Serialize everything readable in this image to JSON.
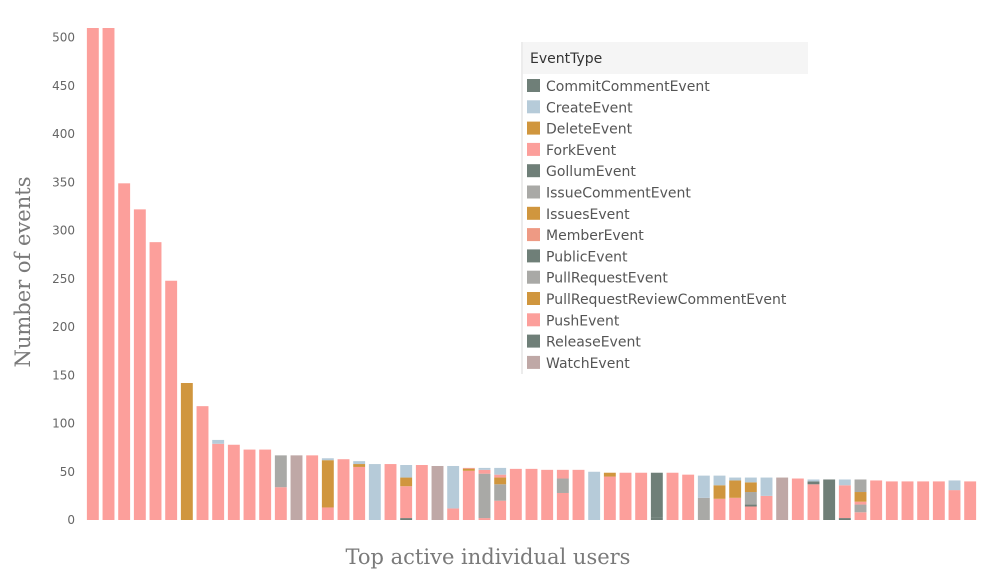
{
  "chart_data": {
    "type": "bar",
    "stacked": true,
    "xlabel": "Top active individual users",
    "ylabel": "Number of events",
    "ylim": [
      0,
      510
    ],
    "yticks": [
      0,
      50,
      100,
      150,
      200,
      250,
      300,
      350,
      400,
      450,
      500
    ],
    "grid": false,
    "legend": {
      "title": "EventType",
      "position": "top-right",
      "entries": [
        {
          "name": "CommitCommentEvent",
          "color": "#6f7f78"
        },
        {
          "name": "CreateEvent",
          "color": "#b6cbd9"
        },
        {
          "name": "DeleteEvent",
          "color": "#d0963e"
        },
        {
          "name": "ForkEvent",
          "color": "#fc9f9b"
        },
        {
          "name": "GollumEvent",
          "color": "#6f7f78"
        },
        {
          "name": "IssueCommentEvent",
          "color": "#a9a9a6"
        },
        {
          "name": "IssuesEvent",
          "color": "#d0963e"
        },
        {
          "name": "MemberEvent",
          "color": "#ee9a84"
        },
        {
          "name": "PublicEvent",
          "color": "#6f7f78"
        },
        {
          "name": "PullRequestEvent",
          "color": "#a9a9a6"
        },
        {
          "name": "PullRequestReviewCommentEvent",
          "color": "#d0963e"
        },
        {
          "name": "PushEvent",
          "color": "#fc9f9b"
        },
        {
          "name": "ReleaseEvent",
          "color": "#6f7f78"
        },
        {
          "name": "WatchEvent",
          "color": "#bfa8a6"
        }
      ]
    },
    "bars": [
      [
        {
          "t": "PushEvent",
          "v": 510
        }
      ],
      [
        {
          "t": "PushEvent",
          "v": 510
        }
      ],
      [
        {
          "t": "PushEvent",
          "v": 349
        }
      ],
      [
        {
          "t": "PushEvent",
          "v": 322
        }
      ],
      [
        {
          "t": "PushEvent",
          "v": 288
        }
      ],
      [
        {
          "t": "PushEvent",
          "v": 248
        }
      ],
      [
        {
          "t": "IssuesEvent",
          "v": 142
        }
      ],
      [
        {
          "t": "PushEvent",
          "v": 118
        }
      ],
      [
        {
          "t": "PushEvent",
          "v": 79
        },
        {
          "t": "CreateEvent",
          "v": 4
        }
      ],
      [
        {
          "t": "PushEvent",
          "v": 78
        }
      ],
      [
        {
          "t": "PushEvent",
          "v": 73
        }
      ],
      [
        {
          "t": "PushEvent",
          "v": 73
        }
      ],
      [
        {
          "t": "PushEvent",
          "v": 34
        },
        {
          "t": "IssueCommentEvent",
          "v": 33
        }
      ],
      [
        {
          "t": "WatchEvent",
          "v": 67
        }
      ],
      [
        {
          "t": "PushEvent",
          "v": 67
        }
      ],
      [
        {
          "t": "PushEvent",
          "v": 13
        },
        {
          "t": "IssuesEvent",
          "v": 49
        },
        {
          "t": "CreateEvent",
          "v": 2
        }
      ],
      [
        {
          "t": "PushEvent",
          "v": 63
        }
      ],
      [
        {
          "t": "PushEvent",
          "v": 55
        },
        {
          "t": "IssuesEvent",
          "v": 3
        },
        {
          "t": "CreateEvent",
          "v": 3
        }
      ],
      [
        {
          "t": "CreateEvent",
          "v": 58
        }
      ],
      [
        {
          "t": "PushEvent",
          "v": 58
        }
      ],
      [
        {
          "t": "CommitCommentEvent",
          "v": 2
        },
        {
          "t": "PushEvent",
          "v": 33
        },
        {
          "t": "IssuesEvent",
          "v": 9
        },
        {
          "t": "CreateEvent",
          "v": 13
        }
      ],
      [
        {
          "t": "PushEvent",
          "v": 57
        }
      ],
      [
        {
          "t": "WatchEvent",
          "v": 56
        }
      ],
      [
        {
          "t": "PushEvent",
          "v": 12
        },
        {
          "t": "CreateEvent",
          "v": 44
        }
      ],
      [
        {
          "t": "PushEvent",
          "v": 51
        },
        {
          "t": "IssuesEvent",
          "v": 2
        },
        {
          "t": "MemberEvent",
          "v": 1
        }
      ],
      [
        {
          "t": "PushEvent",
          "v": 2
        },
        {
          "t": "IssueCommentEvent",
          "v": 46
        },
        {
          "t": "PushEvent",
          "v": 4
        },
        {
          "t": "CreateEvent",
          "v": 2
        }
      ],
      [
        {
          "t": "PushEvent",
          "v": 20
        },
        {
          "t": "IssueCommentEvent",
          "v": 17
        },
        {
          "t": "IssuesEvent",
          "v": 7
        },
        {
          "t": "PushEvent",
          "v": 3
        },
        {
          "t": "CreateEvent",
          "v": 7
        }
      ],
      [
        {
          "t": "PushEvent",
          "v": 53
        }
      ],
      [
        {
          "t": "PushEvent",
          "v": 53
        }
      ],
      [
        {
          "t": "PushEvent",
          "v": 52
        }
      ],
      [
        {
          "t": "PushEvent",
          "v": 28
        },
        {
          "t": "IssueCommentEvent",
          "v": 15
        },
        {
          "t": "PushEvent",
          "v": 9
        }
      ],
      [
        {
          "t": "PushEvent",
          "v": 52
        }
      ],
      [
        {
          "t": "CreateEvent",
          "v": 50
        }
      ],
      [
        {
          "t": "PushEvent",
          "v": 45
        },
        {
          "t": "IssuesEvent",
          "v": 4
        }
      ],
      [
        {
          "t": "PushEvent",
          "v": 49
        }
      ],
      [
        {
          "t": "PushEvent",
          "v": 49
        }
      ],
      [
        {
          "t": "CommitCommentEvent",
          "v": 3
        },
        {
          "t": "PublicEvent",
          "v": 46
        }
      ],
      [
        {
          "t": "PushEvent",
          "v": 49
        }
      ],
      [
        {
          "t": "PushEvent",
          "v": 47
        }
      ],
      [
        {
          "t": "IssueCommentEvent",
          "v": 23
        },
        {
          "t": "CreateEvent",
          "v": 23
        }
      ],
      [
        {
          "t": "PushEvent",
          "v": 22
        },
        {
          "t": "IssuesEvent",
          "v": 14
        },
        {
          "t": "CreateEvent",
          "v": 10
        }
      ],
      [
        {
          "t": "PushEvent",
          "v": 23
        },
        {
          "t": "IssuesEvent",
          "v": 18
        },
        {
          "t": "CreateEvent",
          "v": 3
        }
      ],
      [
        {
          "t": "PushEvent",
          "v": 14
        },
        {
          "t": "ReleaseEvent",
          "v": 2
        },
        {
          "t": "IssueCommentEvent",
          "v": 13
        },
        {
          "t": "IssuesEvent",
          "v": 10
        },
        {
          "t": "CreateEvent",
          "v": 5
        }
      ],
      [
        {
          "t": "PushEvent",
          "v": 25
        },
        {
          "t": "CreateEvent",
          "v": 19
        }
      ],
      [
        {
          "t": "WatchEvent",
          "v": 44
        }
      ],
      [
        {
          "t": "PushEvent",
          "v": 43
        }
      ],
      [
        {
          "t": "PushEvent",
          "v": 37
        },
        {
          "t": "ReleaseEvent",
          "v": 3
        },
        {
          "t": "CreateEvent",
          "v": 2
        }
      ],
      [
        {
          "t": "PublicEvent",
          "v": 42
        }
      ],
      [
        {
          "t": "ReleaseEvent",
          "v": 2
        },
        {
          "t": "PushEvent",
          "v": 34
        },
        {
          "t": "CreateEvent",
          "v": 6
        }
      ],
      [
        {
          "t": "PushEvent",
          "v": 8
        },
        {
          "t": "IssueCommentEvent",
          "v": 8
        },
        {
          "t": "PushEvent",
          "v": 3
        },
        {
          "t": "IssuesEvent",
          "v": 10
        },
        {
          "t": "IssueCommentEvent",
          "v": 13
        }
      ],
      [
        {
          "t": "PushEvent",
          "v": 41
        }
      ],
      [
        {
          "t": "PushEvent",
          "v": 40
        }
      ],
      [
        {
          "t": "PushEvent",
          "v": 40
        }
      ],
      [
        {
          "t": "PushEvent",
          "v": 40
        }
      ],
      [
        {
          "t": "PushEvent",
          "v": 40
        }
      ],
      [
        {
          "t": "PushEvent",
          "v": 31
        },
        {
          "t": "CreateEvent",
          "v": 10
        }
      ],
      [
        {
          "t": "PushEvent",
          "v": 40
        }
      ]
    ]
  }
}
